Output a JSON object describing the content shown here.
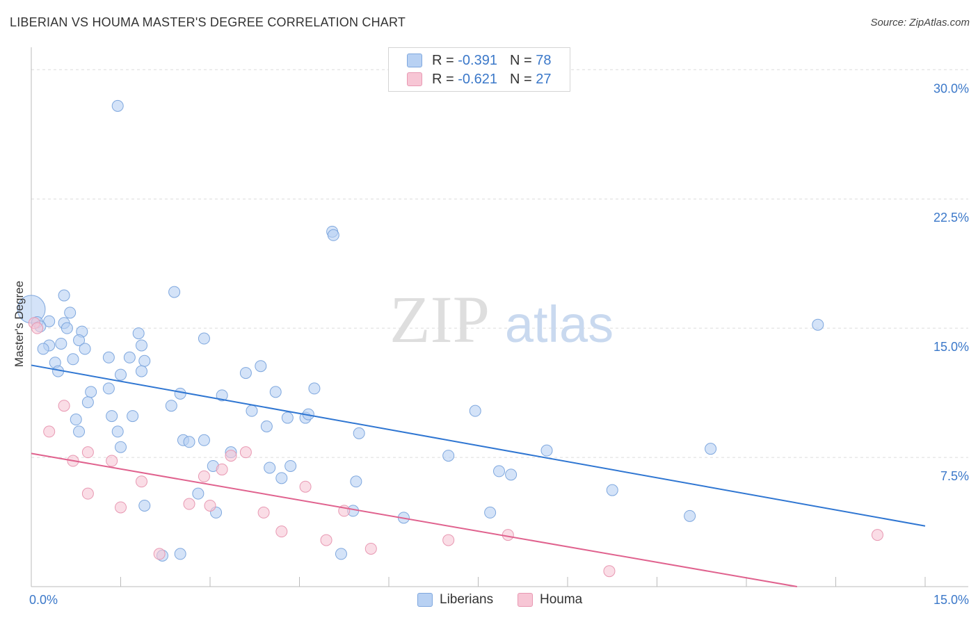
{
  "title": "LIBERIAN VS HOUMA MASTER'S DEGREE CORRELATION CHART",
  "source": "Source: ZipAtlas.com",
  "watermark": {
    "zip": "ZIP",
    "atlas": "atlas"
  },
  "colors": {
    "blue_fill": "#b8d1f3",
    "blue_stroke": "#7ea7de",
    "blue_line": "#2f76d2",
    "pink_fill": "#f7c6d5",
    "pink_stroke": "#e898b2",
    "pink_line": "#e0628e",
    "axis_text": "#3b78c9"
  },
  "legend": {
    "rows": [
      {
        "r_label": "R =",
        "r_value": "-0.391",
        "n_label": "N =",
        "n_value": "78"
      },
      {
        "r_label": "R =",
        "r_value": "-0.621",
        "n_label": "N =",
        "n_value": "27"
      }
    ]
  },
  "bottom_legend": {
    "liberians": "Liberians",
    "houma": "Houma"
  },
  "chart_data": {
    "type": "scatter",
    "title": "LIBERIAN VS HOUMA MASTER'S DEGREE CORRELATION CHART",
    "xlabel": "",
    "ylabel": "Master's Degree",
    "xlim": [
      0,
      15
    ],
    "ylim": [
      0,
      30.9
    ],
    "x_tick_labels": [
      "0.0%",
      "15.0%"
    ],
    "y_tick_labels": [
      {
        "value": 7.5,
        "label": "7.5%"
      },
      {
        "value": 15.0,
        "label": "15.0%"
      },
      {
        "value": 22.5,
        "label": "22.5%"
      },
      {
        "value": 30.0,
        "label": "30.0%"
      }
    ],
    "grid": true,
    "series": [
      {
        "name": "Liberians",
        "color": "#b8d1f3",
        "trend": {
          "x": [
            0.0,
            15.0
          ],
          "y": [
            12.85,
            3.52
          ]
        },
        "points": [
          [
            1.45,
            27.9
          ],
          [
            0.0,
            16.1
          ],
          [
            0.1,
            15.35
          ],
          [
            0.3,
            15.4
          ],
          [
            0.55,
            16.9
          ],
          [
            0.65,
            15.9
          ],
          [
            0.55,
            15.3
          ],
          [
            0.6,
            15.0
          ],
          [
            0.85,
            14.8
          ],
          [
            0.8,
            14.3
          ],
          [
            0.5,
            14.1
          ],
          [
            0.3,
            14.0
          ],
          [
            0.2,
            13.8
          ],
          [
            0.9,
            13.8
          ],
          [
            0.4,
            13.0
          ],
          [
            0.7,
            13.2
          ],
          [
            1.3,
            13.3
          ],
          [
            1.5,
            12.3
          ],
          [
            0.45,
            12.5
          ],
          [
            1.65,
            13.3
          ],
          [
            1.85,
            14.0
          ],
          [
            1.8,
            14.7
          ],
          [
            2.4,
            17.1
          ],
          [
            1.9,
            13.1
          ],
          [
            1.85,
            12.5
          ],
          [
            1.3,
            11.5
          ],
          [
            1.0,
            11.3
          ],
          [
            0.95,
            10.7
          ],
          [
            2.5,
            11.2
          ],
          [
            2.35,
            10.5
          ],
          [
            0.75,
            9.7
          ],
          [
            0.8,
            9.0
          ],
          [
            1.35,
            9.9
          ],
          [
            1.45,
            9.0
          ],
          [
            1.7,
            9.9
          ],
          [
            1.5,
            8.1
          ],
          [
            2.55,
            8.5
          ],
          [
            2.65,
            8.4
          ],
          [
            2.9,
            8.5
          ],
          [
            2.9,
            14.4
          ],
          [
            3.2,
            11.1
          ],
          [
            3.6,
            12.4
          ],
          [
            3.85,
            12.8
          ],
          [
            4.1,
            11.3
          ],
          [
            3.7,
            10.2
          ],
          [
            3.95,
            9.3
          ],
          [
            4.3,
            9.8
          ],
          [
            4.6,
            9.8
          ],
          [
            4.65,
            10.0
          ],
          [
            4.75,
            11.5
          ],
          [
            5.05,
            20.6
          ],
          [
            5.07,
            20.4
          ],
          [
            5.5,
            8.9
          ],
          [
            3.35,
            7.8
          ],
          [
            3.05,
            7.0
          ],
          [
            4.0,
            6.9
          ],
          [
            4.2,
            6.3
          ],
          [
            4.35,
            7.0
          ],
          [
            5.45,
            6.1
          ],
          [
            2.8,
            5.4
          ],
          [
            3.1,
            4.3
          ],
          [
            1.9,
            4.7
          ],
          [
            2.2,
            1.8
          ],
          [
            2.5,
            1.9
          ],
          [
            5.2,
            1.9
          ],
          [
            5.4,
            4.4
          ],
          [
            6.25,
            4.0
          ],
          [
            7.0,
            7.6
          ],
          [
            7.45,
            10.2
          ],
          [
            7.7,
            4.3
          ],
          [
            7.85,
            6.7
          ],
          [
            8.05,
            6.5
          ],
          [
            8.65,
            7.9
          ],
          [
            9.75,
            5.6
          ],
          [
            11.05,
            4.1
          ],
          [
            11.4,
            8.0
          ],
          [
            13.2,
            15.2
          ],
          [
            0.15,
            15.1
          ]
        ]
      },
      {
        "name": "Houma",
        "color": "#f7c6d5",
        "trend": {
          "x": [
            0.0,
            12.85
          ],
          "y": [
            7.73,
            0.0
          ]
        },
        "points": [
          [
            0.05,
            15.3
          ],
          [
            0.1,
            15.0
          ],
          [
            0.55,
            10.5
          ],
          [
            0.3,
            9.0
          ],
          [
            0.95,
            7.8
          ],
          [
            0.7,
            7.3
          ],
          [
            1.35,
            7.3
          ],
          [
            0.95,
            5.4
          ],
          [
            1.5,
            4.6
          ],
          [
            1.85,
            6.1
          ],
          [
            2.15,
            1.9
          ],
          [
            2.65,
            4.8
          ],
          [
            2.9,
            6.4
          ],
          [
            3.0,
            4.7
          ],
          [
            3.2,
            6.8
          ],
          [
            3.35,
            7.6
          ],
          [
            3.6,
            7.8
          ],
          [
            3.9,
            4.3
          ],
          [
            4.2,
            3.2
          ],
          [
            4.6,
            5.8
          ],
          [
            4.95,
            2.7
          ],
          [
            5.25,
            4.4
          ],
          [
            5.7,
            2.2
          ],
          [
            7.0,
            2.7
          ],
          [
            8.0,
            3.0
          ],
          [
            9.7,
            0.9
          ],
          [
            14.2,
            3.0
          ]
        ]
      }
    ]
  }
}
